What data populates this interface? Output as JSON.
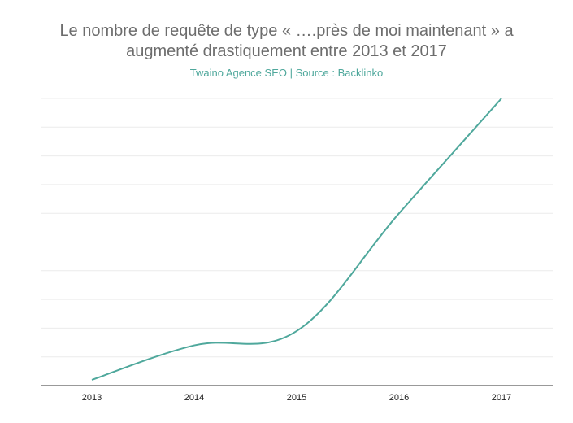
{
  "chart_data": {
    "type": "line",
    "title": "Le nombre de requête de type « ….près de moi maintenant » a augmenté drastiquement entre 2013 et 2017",
    "title_lines": [
      "Le nombre de requête de type « ….près de moi maintenant » a",
      "augmenté drastiquement entre 2013 et 2017"
    ],
    "subtitle": "Twaino Agence SEO | Source : Backlinko",
    "xlabel": "",
    "ylabel": "",
    "categories": [
      "2013",
      "2014",
      "2015",
      "2016",
      "2017"
    ],
    "series": [
      {
        "values": [
          2,
          14,
          19,
          60,
          100
        ],
        "color": "#4fa89c"
      }
    ],
    "ylim": [
      0,
      100
    ],
    "grid": true,
    "legend": "none"
  }
}
